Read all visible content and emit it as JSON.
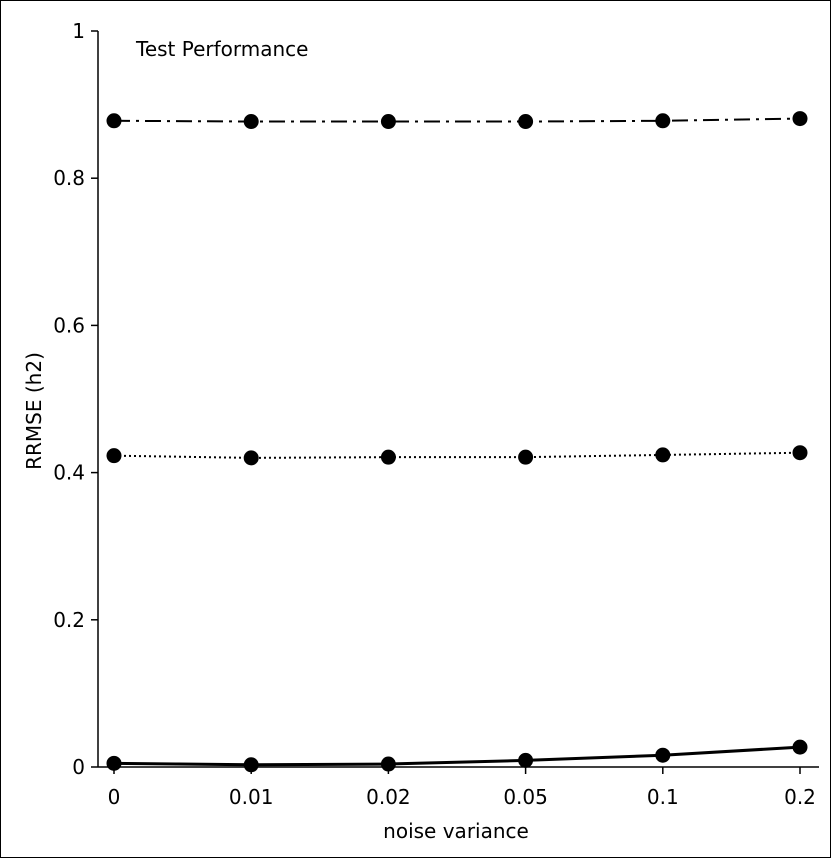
{
  "chart_data": {
    "type": "line",
    "title": "Test Performance",
    "xlabel": "noise variance",
    "ylabel": "RRMSE (h2)",
    "categories": [
      "0",
      "0.01",
      "0.02",
      "0.05",
      "0.1",
      "0.2"
    ],
    "ylim": [
      0,
      1
    ],
    "yticks": [
      "0",
      "0.2",
      "0.4",
      "0.6",
      "0.8",
      "1"
    ],
    "grid": false,
    "series": [
      {
        "style": "dashdot",
        "values": [
          0.878,
          0.877,
          0.877,
          0.877,
          0.878,
          0.881
        ]
      },
      {
        "style": "dotted",
        "values": [
          0.423,
          0.42,
          0.421,
          0.421,
          0.424,
          0.427
        ]
      },
      {
        "style": "solid",
        "values": [
          0.005,
          0.003,
          0.004,
          0.009,
          0.016,
          0.027
        ]
      }
    ],
    "colors": {
      "line": "#000000",
      "marker": "#000000"
    }
  }
}
